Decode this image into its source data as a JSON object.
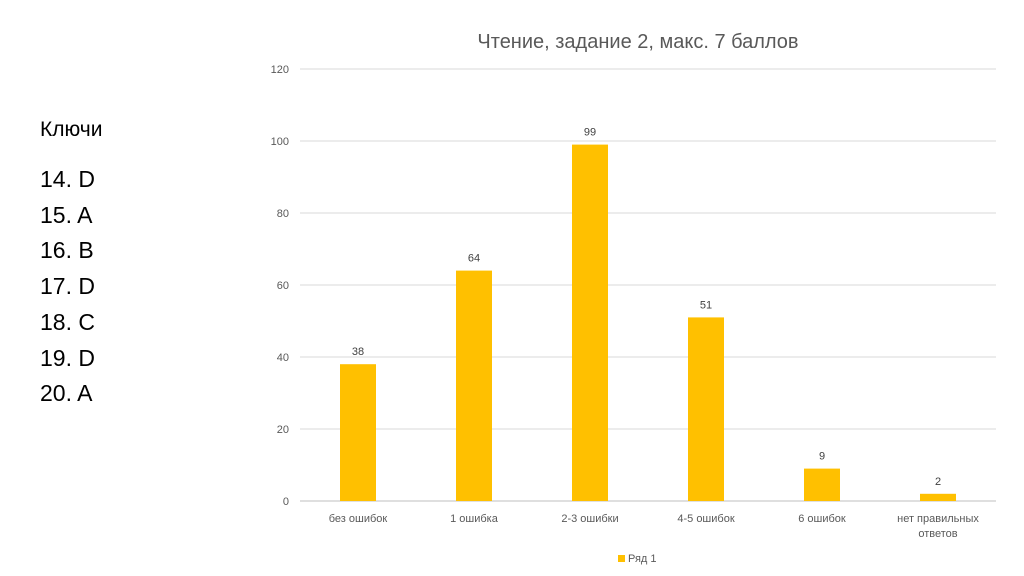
{
  "keys": {
    "title": "Ключи",
    "items": [
      "14. D",
      "15. A",
      "16. B",
      "17. D",
      "18. C",
      "19. D",
      "20. A"
    ]
  },
  "chart_data": {
    "type": "bar",
    "title": "Чтение, задание 2, макс. 7 баллов",
    "categories": [
      [
        "без ошибок"
      ],
      [
        "1 ошибка"
      ],
      [
        "2-3 ошибки"
      ],
      [
        "4-5 ошибок"
      ],
      [
        "6 ошибок"
      ],
      [
        "нет правильных",
        "ответов"
      ]
    ],
    "series": [
      {
        "name": "Ряд 1",
        "values": [
          38,
          64,
          99,
          51,
          9,
          2
        ],
        "color": "#FFC000"
      }
    ],
    "y_ticks": [
      0,
      20,
      40,
      60,
      80,
      100,
      120
    ],
    "ylim": [
      0,
      120
    ],
    "grid": true,
    "legend": "bottom",
    "data_labels": true
  }
}
